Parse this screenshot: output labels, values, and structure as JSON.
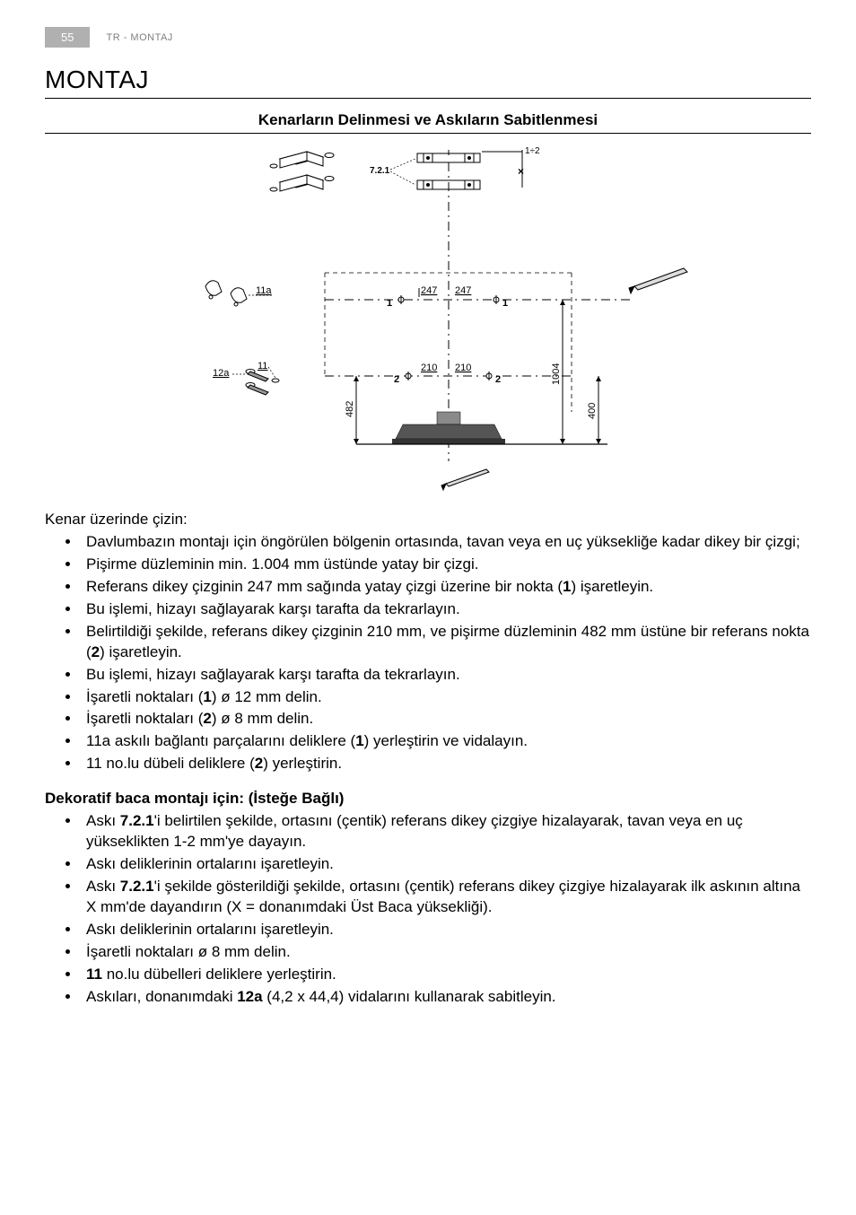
{
  "header": {
    "page_number": "55",
    "breadcrumb": "TR - MONTAJ"
  },
  "title": "MONTAJ",
  "section1": {
    "heading": "Kenarların Delinmesi ve Askıların Sabitlenmesi"
  },
  "diagram": {
    "labels": {
      "top_note": "1÷2",
      "bracket_ref": "7.2.1",
      "hook_left": "11a",
      "screw_left_a": "12a",
      "screw_left_b": "11",
      "dim_upper_left": "247",
      "dim_upper_right": "247",
      "mark_upper_l": "1",
      "mark_upper_r": "1",
      "dim_lower_left": "210",
      "dim_lower_right": "210",
      "mark_lower_l": "2",
      "mark_lower_r": "2",
      "height_left": "482",
      "height_mid": "1004",
      "height_right": "400"
    },
    "colors": {
      "stroke": "#000000",
      "dash": "#000000",
      "fill_hood": "#8a8a8a",
      "fill_hood_dark": "#555555",
      "background": "#ffffff"
    }
  },
  "body": {
    "intro": "Kenar üzerinde çizin:",
    "bullets1": [
      "Davlumbazın montajı için öngörülen bölgenin ortasında, tavan veya en uç yüksekliğe kadar dikey bir çizgi;",
      "Pişirme düzleminin min. 1.004 mm üstünde yatay bir çizgi.",
      "Referans dikey çizginin 247 mm sağında yatay çizgi üzerine bir nokta (<b>1</b>) işaretleyin.",
      "Bu işlemi, hizayı sağlayarak karşı tarafta da tekrarlayın.",
      "Belirtildiği şekilde, referans dikey çizginin 210 mm, ve pişirme düzleminin 482 mm üstüne bir referans nokta (<b>2</b>) işaretleyin.",
      "Bu işlemi, hizayı sağlayarak karşı tarafta da tekrarlayın.",
      "İşaretli noktaları (<b>1</b>) ø 12 mm delin.",
      "İşaretli noktaları (<b>2</b>) ø 8 mm delin.",
      "11a askılı bağlantı parçalarını deliklere (<b>1</b>) yerleştirin ve vidalayın.",
      "11 no.lu dübeli deliklere (<b>2</b>) yerleştirin."
    ],
    "subtitle2": "Dekoratif baca montajı için: (İsteğe Bağlı)",
    "bullets2": [
      "Askı <b>7.2.1</b>'i belirtilen şekilde, ortasını (çentik) referans dikey çizgiye hizalayarak, tavan veya en uç yükseklikten 1-2 mm'ye dayayın.",
      "Askı deliklerinin ortalarını işaretleyin.",
      "Askı <b>7.2.1</b>'i şekilde gösterildiği şekilde, ortasını (çentik) referans dikey çizgiye hizalayarak ilk askının altına X mm'de dayandırın (X = donanımdaki Üst Baca yüksekliği).",
      "Askı deliklerinin ortalarını işaretleyin.",
      "İşaretli noktaları ø 8 mm delin.",
      "<b>11</b> no.lu dübelleri deliklere yerleştirin.",
      "Askıları, donanımdaki <b>12a</b> (4,2 x 44,4) vidalarını kullanarak sabitleyin."
    ]
  }
}
